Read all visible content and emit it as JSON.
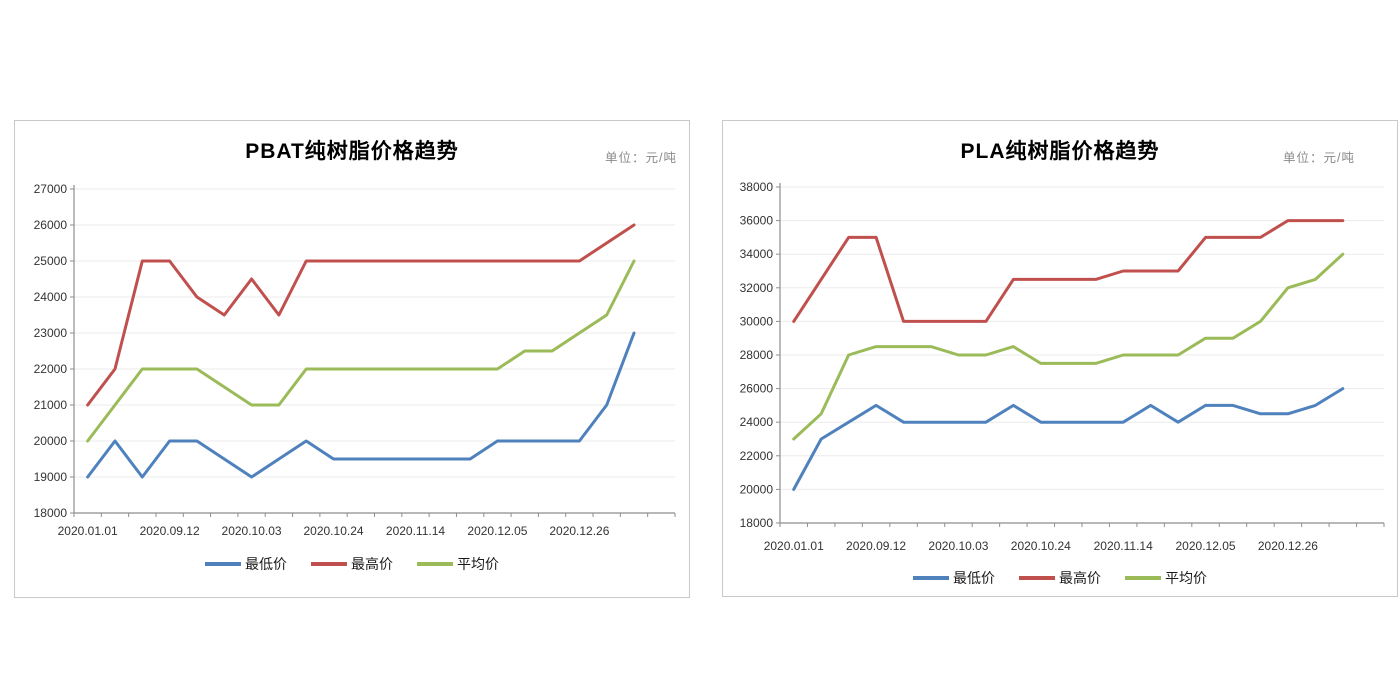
{
  "colors": {
    "series_min": "#4F81BD",
    "series_max": "#C0504D",
    "series_avg": "#9BBB59",
    "grid": "#ebebeb",
    "axis": "#8e8e8e",
    "tick_text": "#333333",
    "title": "#000000",
    "unit": "#8a8a8a",
    "panel_border": "#c9c9c9",
    "background": "#ffffff"
  },
  "chart_data": [
    {
      "type": "line",
      "title": "PBAT纯树脂价格趋势",
      "unit_label": "单位：元/吨",
      "ylim": [
        18000,
        27000
      ],
      "y_step": 1000,
      "y_tick_labels": [
        "18000",
        "19000",
        "20000",
        "21000",
        "22000",
        "23000",
        "24000",
        "25000",
        "26000",
        "27000"
      ],
      "x_tick_labels": [
        "2020.01.01",
        "2020.09.12",
        "2020.10.03",
        "2020.10.24",
        "2020.11.14",
        "2020.12.05",
        "2020.12.26"
      ],
      "x_label_positions": [
        0,
        3,
        6,
        9,
        12,
        15,
        18
      ],
      "n_points": 21,
      "grid": true,
      "legend_position": "bottom",
      "series": [
        {
          "name": "最低价",
          "color": "#4F81BD",
          "values": [
            19000,
            20000,
            19000,
            20000,
            20000,
            19500,
            19000,
            19500,
            20000,
            19500,
            19500,
            19500,
            19500,
            19500,
            19500,
            20000,
            20000,
            20000,
            20000,
            21000,
            23000
          ]
        },
        {
          "name": "最高价",
          "color": "#C0504D",
          "values": [
            21000,
            22000,
            25000,
            25000,
            24000,
            23500,
            24500,
            23500,
            25000,
            25000,
            25000,
            25000,
            25000,
            25000,
            25000,
            25000,
            25000,
            25000,
            25000,
            25500,
            26000
          ]
        },
        {
          "name": "平均价",
          "color": "#9BBB59",
          "values": [
            20000,
            21000,
            22000,
            22000,
            22000,
            21500,
            21000,
            21000,
            22000,
            22000,
            22000,
            22000,
            22000,
            22000,
            22000,
            22000,
            22500,
            22500,
            23000,
            23500,
            25000
          ]
        }
      ]
    },
    {
      "type": "line",
      "title": "PLA纯树脂价格趋势",
      "unit_label": "单位：元/吨",
      "ylim": [
        18000,
        38000
      ],
      "y_step": 2000,
      "y_tick_labels": [
        "18000",
        "20000",
        "22000",
        "24000",
        "26000",
        "28000",
        "30000",
        "32000",
        "34000",
        "36000",
        "38000"
      ],
      "x_tick_labels": [
        "2020.01.01",
        "2020.09.12",
        "2020.10.03",
        "2020.10.24",
        "2020.11.14",
        "2020.12.05",
        "2020.12.26"
      ],
      "x_label_positions": [
        0,
        3,
        6,
        9,
        12,
        15,
        18
      ],
      "n_points": 21,
      "grid": true,
      "legend_position": "bottom",
      "series": [
        {
          "name": "最低价",
          "color": "#4F81BD",
          "values": [
            20000,
            23000,
            24000,
            25000,
            24000,
            24000,
            24000,
            24000,
            25000,
            24000,
            24000,
            24000,
            24000,
            25000,
            24000,
            25000,
            25000,
            24500,
            24500,
            25000,
            26000
          ]
        },
        {
          "name": "最高价",
          "color": "#C0504D",
          "values": [
            30000,
            32500,
            35000,
            35000,
            30000,
            30000,
            30000,
            30000,
            32500,
            32500,
            32500,
            32500,
            33000,
            33000,
            33000,
            35000,
            35000,
            35000,
            36000,
            36000,
            36000
          ]
        },
        {
          "name": "平均价",
          "color": "#9BBB59",
          "values": [
            23000,
            24500,
            28000,
            28500,
            28500,
            28500,
            28000,
            28000,
            28500,
            27500,
            27500,
            27500,
            28000,
            28000,
            28000,
            29000,
            29000,
            30000,
            32000,
            32500,
            34000
          ]
        }
      ]
    }
  ]
}
